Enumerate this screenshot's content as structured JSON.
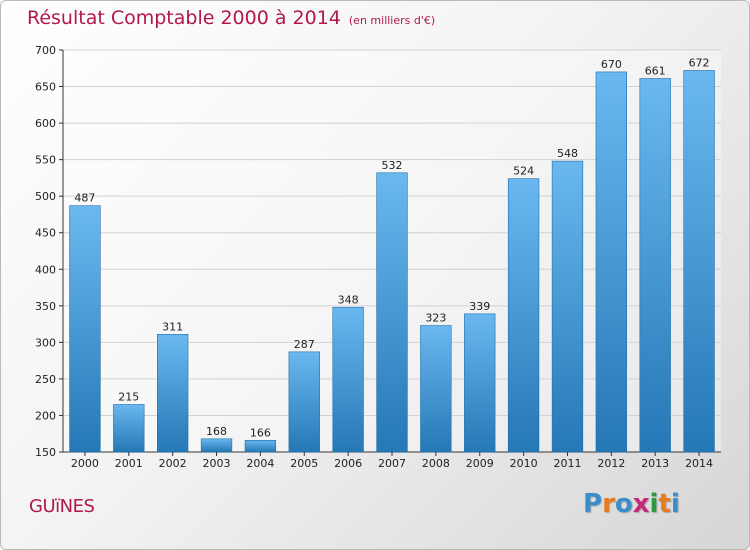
{
  "title": "Résultat Comptable 2000 à 2014",
  "subtitle": "(en milliers d'€)",
  "commune": "GUïNES",
  "logo": {
    "letters": [
      "P",
      "r",
      "o",
      "x",
      "i",
      "t",
      "i"
    ],
    "colors": [
      "#3a8ec9",
      "#e87b1e",
      "#3a8ec9",
      "#c7287a",
      "#2b9a3e",
      "#e87b1e",
      "#3a8ec9"
    ]
  },
  "colors": {
    "bar_light": "#6ab8ef",
    "bar_dark": "#2578b6",
    "title": "#b1184d"
  },
  "chart_data": {
    "type": "bar",
    "categories": [
      "2000",
      "2001",
      "2002",
      "2003",
      "2004",
      "2005",
      "2006",
      "2007",
      "2008",
      "2009",
      "2010",
      "2011",
      "2012",
      "2013",
      "2014"
    ],
    "values": [
      487,
      215,
      311,
      168,
      166,
      287,
      348,
      532,
      323,
      339,
      524,
      548,
      670,
      661,
      672
    ],
    "labels": [
      "487",
      "215",
      "311",
      "168",
      "166",
      "287",
      "348",
      "532",
      "323",
      "339",
      "524",
      "548",
      "670",
      "661",
      "672"
    ],
    "yticks": [
      "150",
      "200",
      "250",
      "300",
      "350",
      "400",
      "450",
      "500",
      "550",
      "600",
      "650",
      "700"
    ],
    "ylim": [
      150,
      700
    ],
    "grid": true,
    "legend": "none"
  }
}
